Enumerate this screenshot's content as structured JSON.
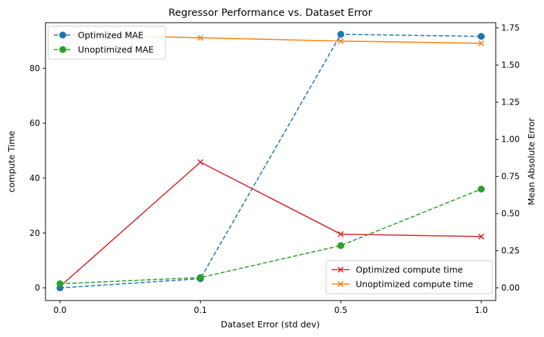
{
  "chart_data": {
    "type": "line",
    "title": "Regressor Performance vs. Dataset Error",
    "xlabel": "Dataset Error (std dev)",
    "ylabel_left": "compute Time",
    "ylabel_right": "Mean Absolute Error",
    "categories": [
      "0.0",
      "0.1",
      "0.5",
      "1.0"
    ],
    "ylim_left": [
      -4.6,
      96.6
    ],
    "ylim_right": [
      -0.085,
      1.785
    ],
    "yticks_left": [
      0,
      20,
      40,
      60,
      80
    ],
    "yticks_right": [
      0.0,
      0.25,
      0.5,
      0.75,
      1.0,
      1.25,
      1.5,
      1.75
    ],
    "yticks_right_labels": [
      "0.00",
      "0.25",
      "0.50",
      "0.75",
      "1.00",
      "1.25",
      "1.50",
      "1.75"
    ],
    "series_left": [
      {
        "name": "Optimized compute time",
        "color": "#d62728",
        "marker": "x",
        "dash": "solid",
        "values": [
          0.5,
          45.8,
          19.6,
          18.7
        ]
      },
      {
        "name": "Unoptimized compute time",
        "color": "#ff7f0e",
        "marker": "x",
        "dash": "solid",
        "values": [
          92.3,
          91.1,
          89.9,
          89.1
        ]
      }
    ],
    "series_right": [
      {
        "name": "Optimized MAE",
        "color": "#1f77b4",
        "marker": "o",
        "dash": "dashed",
        "values": [
          0.0,
          0.062,
          1.707,
          1.693
        ]
      },
      {
        "name": "Unoptimized MAE",
        "color": "#2ca02c",
        "marker": "o",
        "dash": "dashed",
        "values": [
          0.028,
          0.07,
          0.285,
          0.665
        ]
      }
    ],
    "legends": {
      "upper_left": [
        "Optimized MAE",
        "Unoptimized MAE"
      ],
      "lower_right": [
        "Optimized compute time",
        "Unoptimized compute time"
      ]
    },
    "grid": false
  }
}
